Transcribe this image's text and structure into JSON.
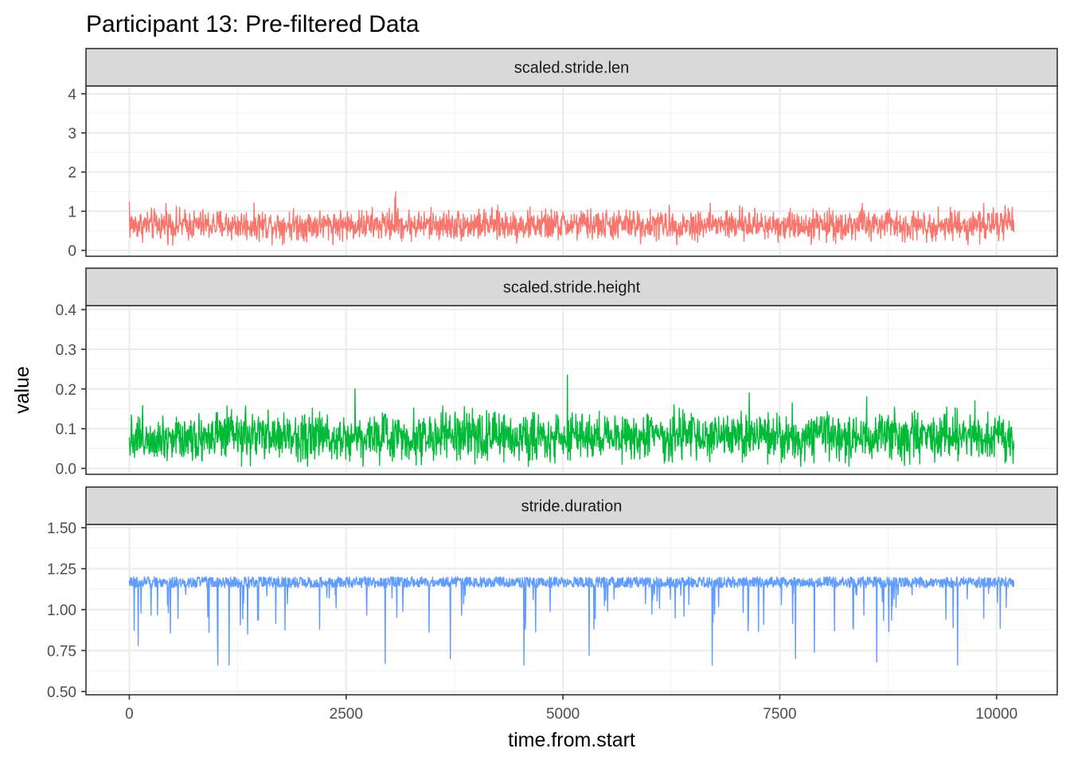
{
  "chart_data": {
    "type": "line",
    "title": "Participant 13: Pre-filtered Data",
    "xlabel": "time.from.start",
    "ylabel": "value",
    "x_range": [
      0,
      10200
    ],
    "xlim": [
      -500,
      10700
    ],
    "x_ticks": [
      0,
      2500,
      5000,
      7500,
      10000
    ],
    "x_tick_labels": [
      "0",
      "2500",
      "5000",
      "7500",
      "10000"
    ],
    "grid": true,
    "legend": "none",
    "facets": [
      {
        "name": "scaled.stride.len",
        "color": "#F8766D",
        "ylim": [
          -0.15,
          4.2
        ],
        "y_ticks": [
          0,
          1,
          2,
          3,
          4
        ],
        "y_tick_labels": [
          "0",
          "1",
          "2",
          "3",
          "4"
        ],
        "n_points": 2200,
        "baseline": 0.65,
        "spread": 0.16,
        "data_min": 0.05,
        "data_max": 1.5,
        "peaks": [
          [
            0,
            1.25
          ],
          [
            420,
            1.2
          ],
          [
            3070,
            1.5
          ],
          [
            3060,
            1.35
          ],
          [
            6700,
            1.2
          ],
          [
            8450,
            1.2
          ],
          [
            9850,
            1.2
          ],
          [
            10100,
            1.15
          ]
        ]
      },
      {
        "name": "scaled.stride.height",
        "color": "#00BA38",
        "ylim": [
          -0.015,
          0.41
        ],
        "y_ticks": [
          0.0,
          0.1,
          0.2,
          0.3,
          0.4
        ],
        "y_tick_labels": [
          "0.0",
          "0.1",
          "0.2",
          "0.3",
          "0.4"
        ],
        "n_points": 2200,
        "baseline": 0.08,
        "spread": 0.025,
        "data_min": 0.005,
        "data_max": 0.24,
        "peaks": [
          [
            5050,
            0.235
          ],
          [
            2600,
            0.2
          ],
          [
            7150,
            0.19
          ],
          [
            8500,
            0.18
          ],
          [
            9750,
            0.17
          ],
          [
            6280,
            0.16
          ]
        ]
      },
      {
        "name": "stride.duration",
        "color": "#619CFF",
        "ylim": [
          0.48,
          1.52
        ],
        "y_ticks": [
          0.5,
          0.75,
          1.0,
          1.25,
          1.5
        ],
        "y_tick_labels": [
          "0.50",
          "0.75",
          "1.00",
          "1.25",
          "1.50"
        ],
        "n_points": 2200,
        "baseline": 1.14,
        "spread": 0.03,
        "data_min": 0.66,
        "data_max": 1.2,
        "dips": [
          [
            1020,
            0.66
          ],
          [
            1150,
            0.66
          ],
          [
            2950,
            0.67
          ],
          [
            4550,
            0.66
          ],
          [
            6720,
            0.66
          ],
          [
            9550,
            0.66
          ],
          [
            7680,
            0.7
          ],
          [
            8620,
            0.68
          ],
          [
            3700,
            0.7
          ],
          [
            100,
            0.78
          ],
          [
            5300,
            0.72
          ],
          [
            7900,
            0.74
          ]
        ]
      }
    ]
  }
}
